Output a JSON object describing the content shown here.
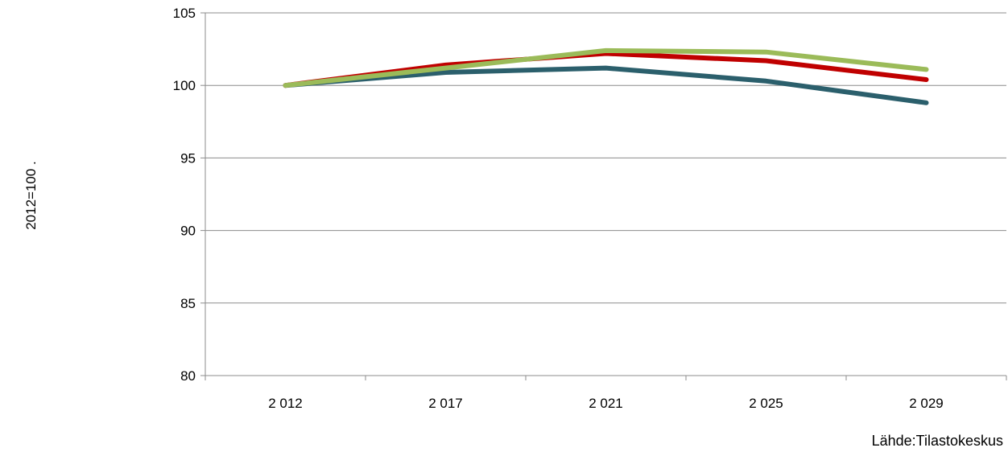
{
  "chart_data": {
    "type": "line",
    "title": "",
    "xlabel": "",
    "ylabel": "2012=100    .",
    "categories": [
      "2 012",
      "2 017",
      "2 021",
      "2 025",
      "2 029"
    ],
    "yticks": [
      "80",
      "85",
      "90",
      "95",
      "100",
      "105"
    ],
    "ylim": [
      80,
      105
    ],
    "grid": true,
    "legend": "none",
    "series": [
      {
        "color": "#2b5f6c",
        "values": [
          100,
          100.9,
          101.2,
          100.3,
          98.8
        ]
      },
      {
        "color": "#c00000",
        "values": [
          100,
          101.4,
          102.2,
          101.7,
          100.4
        ]
      },
      {
        "color": "#9bbb59",
        "values": [
          100,
          101.2,
          102.4,
          102.3,
          101.1
        ]
      }
    ],
    "source": "Lähde:Tilastokeskus"
  }
}
